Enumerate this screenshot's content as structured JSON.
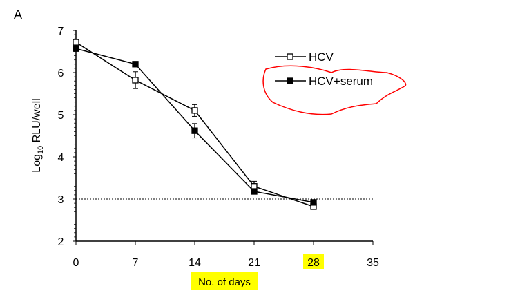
{
  "panel_label": "A",
  "chart_data": {
    "type": "line",
    "title": "",
    "xlabel": "No. of days",
    "ylabel_main": "Log",
    "ylabel_sub": "10",
    "ylabel_rest": " RLU/well",
    "xlim": [
      0,
      35
    ],
    "ylim": [
      2,
      7
    ],
    "xticks": [
      0,
      7,
      14,
      21,
      28,
      35
    ],
    "yticks": [
      2,
      3,
      4,
      5,
      6,
      7
    ],
    "threshold": 3,
    "legend_position": "top-right",
    "highlighted_xtick": 28,
    "highlight_color": "#ffff00",
    "annotation_color": "#ff0000",
    "series": [
      {
        "name": "HCV",
        "marker": "open-square",
        "x": [
          0,
          7,
          14,
          21,
          28
        ],
        "y": [
          6.72,
          5.82,
          5.1,
          3.3,
          2.82
        ],
        "err": [
          0.05,
          0.2,
          0.14,
          0.12,
          0.05
        ]
      },
      {
        "name": "HCV+serum",
        "marker": "filled-square",
        "x": [
          0,
          7,
          14,
          21,
          28
        ],
        "y": [
          6.57,
          6.2,
          4.62,
          3.18,
          2.92
        ],
        "err": [
          0.04,
          0.04,
          0.17,
          0.06,
          0.04
        ]
      }
    ]
  }
}
